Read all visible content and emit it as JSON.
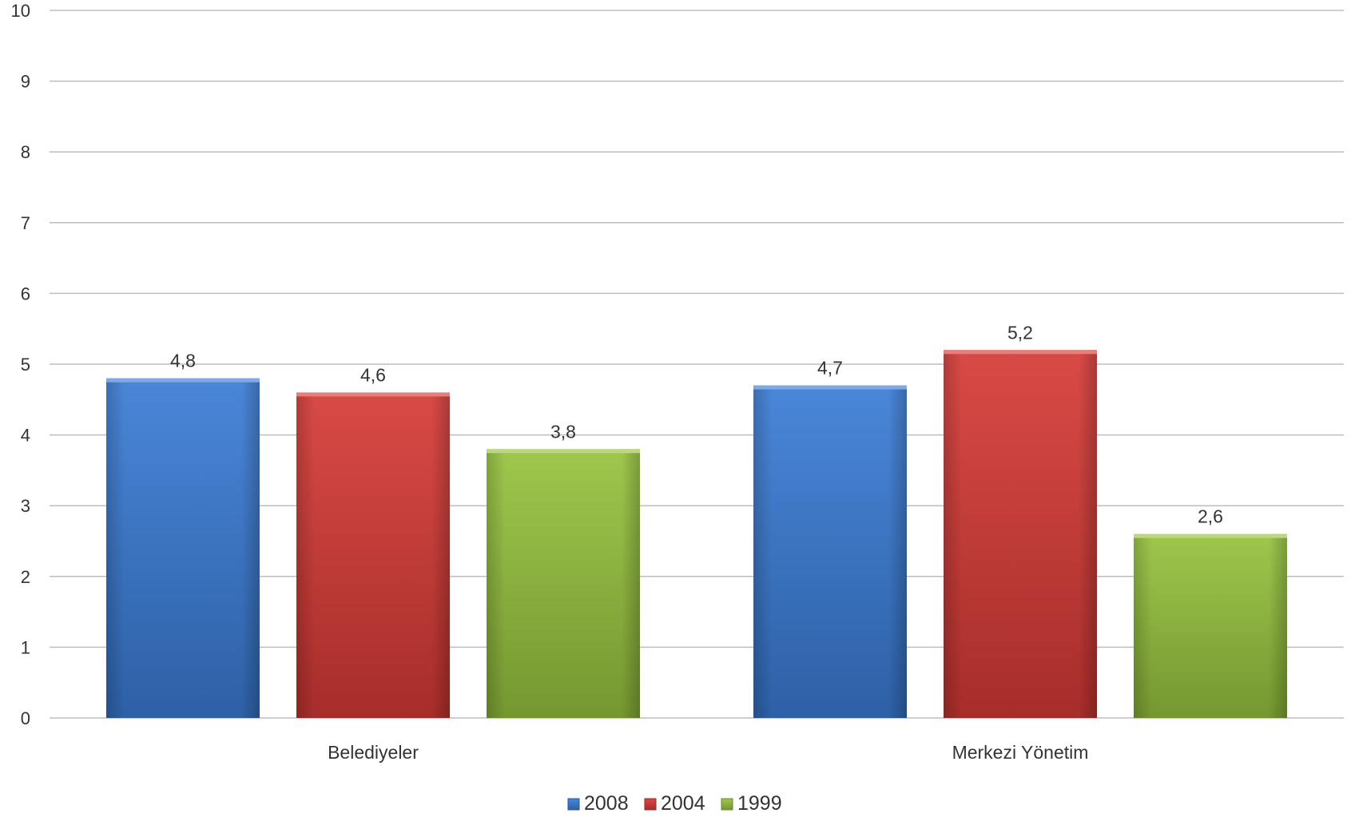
{
  "chart_data": {
    "type": "bar",
    "categories": [
      "Belediyeler",
      "Merkezi Yönetim"
    ],
    "series": [
      {
        "name": "2008",
        "values": [
          4.8,
          4.7
        ],
        "value_labels": [
          "4,8",
          "4,7"
        ],
        "color": "#3a7bd5"
      },
      {
        "name": "2004",
        "values": [
          4.6,
          5.2
        ],
        "value_labels": [
          "4,6",
          "5,2"
        ],
        "color": "#d63a36"
      },
      {
        "name": "1999",
        "values": [
          3.8,
          2.6
        ],
        "value_labels": [
          "3,8",
          "2,6"
        ],
        "color": "#96c23e"
      }
    ],
    "title": "",
    "xlabel": "",
    "ylabel": "",
    "ylim": [
      0,
      10
    ],
    "yticks": [
      "0",
      "1",
      "2",
      "3",
      "4",
      "5",
      "6",
      "7",
      "8",
      "9",
      "10"
    ],
    "grid": true,
    "legend_position": "bottom"
  }
}
